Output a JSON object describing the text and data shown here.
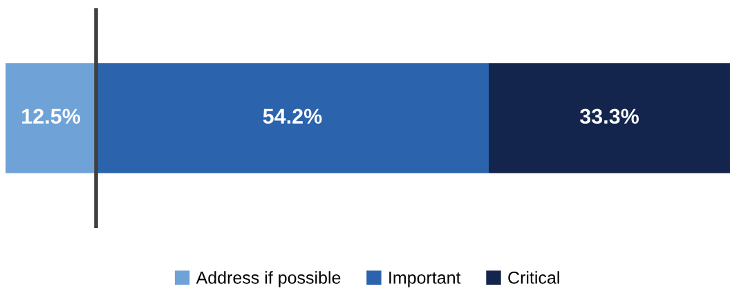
{
  "chart_data": {
    "type": "bar",
    "orientation": "horizontal",
    "stacked": true,
    "categories": [
      null
    ],
    "series": [
      {
        "name": "Address if possible",
        "color": "#6fa3d8",
        "values": [
          12.5
        ],
        "value_labels": [
          "12.5%"
        ]
      },
      {
        "name": "Important",
        "color": "#2b63ad",
        "values": [
          54.2
        ],
        "value_labels": [
          "54.2%"
        ]
      },
      {
        "name": "Critical",
        "color": "#14254d",
        "values": [
          33.3
        ],
        "value_labels": [
          "33.3%"
        ]
      }
    ],
    "xlim": [
      0,
      100
    ],
    "tick_labels": false,
    "legend": "bottom",
    "ref_lines": [
      {
        "axis": "x",
        "value": 12.5,
        "color": "#404040",
        "line_style": "solid"
      }
    ]
  }
}
